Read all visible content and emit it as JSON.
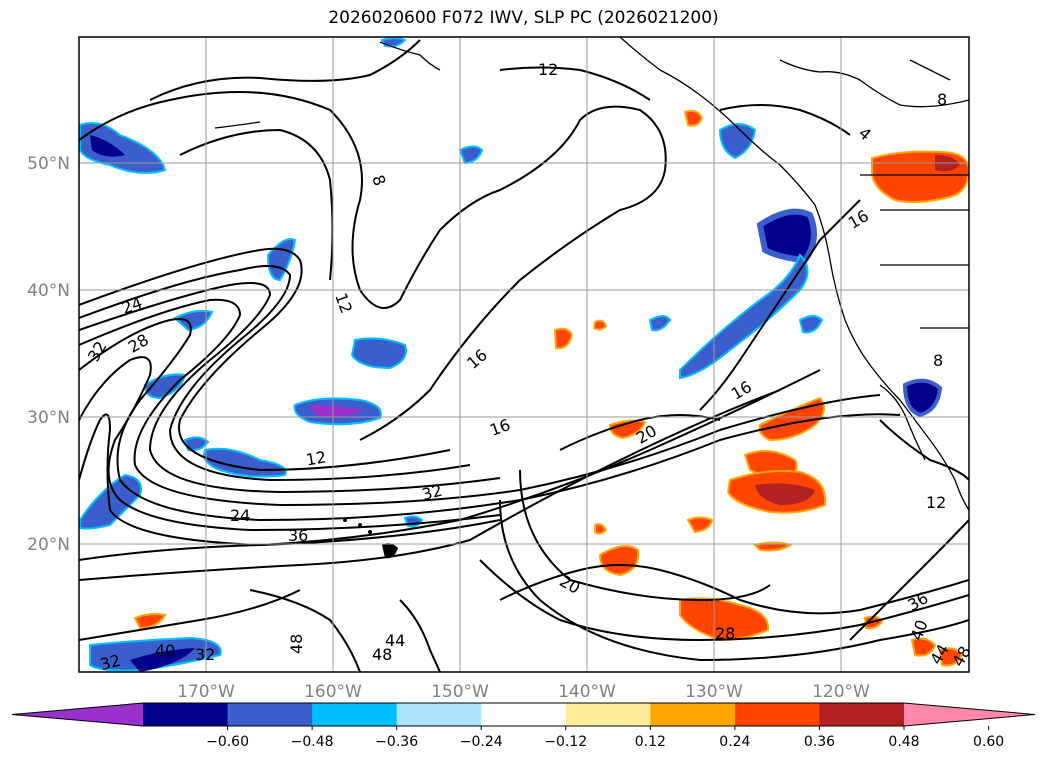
{
  "title": "2026020600 F072 IWV, SLP PC (2026021200)",
  "lon_labels": [
    "170°W",
    "160°W",
    "150°W",
    "140°W",
    "130°W",
    "120°W"
  ],
  "lat_labels": [
    "50°N",
    "40°N",
    "30°N",
    "20°N"
  ],
  "contour_labels": [
    "12",
    "8",
    "12",
    "24",
    "28",
    "32",
    "16",
    "16",
    "12",
    "16",
    "20",
    "32",
    "24",
    "36",
    "20",
    "28",
    "36",
    "40",
    "44",
    "48",
    "48",
    "32",
    "40",
    "32",
    "4",
    "8",
    "16",
    "8",
    "12",
    "44",
    "48"
  ],
  "colorbar": {
    "colors": [
      "#9932CC",
      "#00008B",
      "#3A5FCD",
      "#00BFFF",
      "#ADE3F7",
      "#FFFFFF",
      "#FFEE99",
      "#FFA500",
      "#FF4500",
      "#B22222",
      "#FF88AA"
    ],
    "tick_labels": [
      "−0.60",
      "−0.48",
      "−0.36",
      "−0.24",
      "−0.12",
      "0.12",
      "0.24",
      "0.36",
      "0.48",
      "0.60"
    ]
  },
  "style": {
    "gridline_color": "#999999",
    "coast_color": "#000000"
  }
}
